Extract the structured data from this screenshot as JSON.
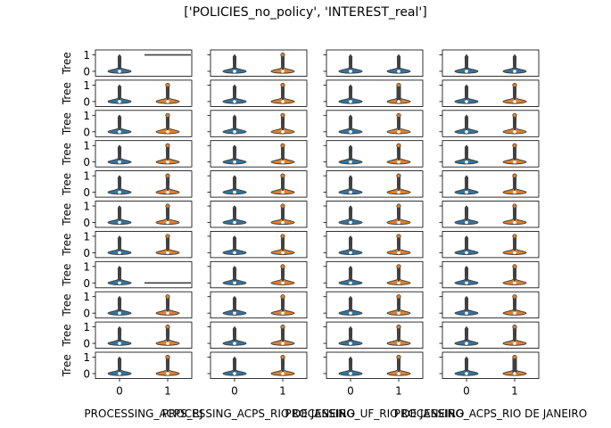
{
  "title": "['POLICIES_no_policy', 'INTEREST_real']",
  "colors": {
    "class0": "#3274a1",
    "class1": "#e1812c",
    "frame": "#000000",
    "violin_line": "#404040"
  },
  "chart_data": {
    "type": "violin",
    "title": "['POLICIES_no_policy', 'INTEREST_real']",
    "grid": false,
    "legend": "none",
    "rows": 11,
    "columns": [
      "PROCESSING_ACPS_RJ",
      "PROCESSING_ACPS_RIO DE JANEIRO",
      "PROCESSING_UF_RIO DE JANEIRO",
      "PROCESSING_ACPS_RIO DE JANEIRO"
    ],
    "column_labels": [
      "PROCESSING_ACPS_RJ",
      "PROCESSING_ACPS_RIO DE JANEIRO",
      "PROCESSING_UF_RIO DE JANEIRO",
      "PROCESSING_ACPS_RIO DE JANEIRO"
    ],
    "x_categories": [
      "0",
      "1"
    ],
    "x_tick_labels": [
      "0",
      "1"
    ],
    "y_label": "Tree",
    "y_ticks": [
      0,
      1
    ],
    "y_tick_labels": [
      "0",
      "1"
    ],
    "ylim": [
      -0.3,
      1.3
    ],
    "note_values": "each panel shows the distribution of Tree (values 0/1) for category 0 and 1",
    "panels": [
      [
        {
          "c0": "full",
          "c1": "line1"
        },
        {
          "c0": "full",
          "c1": "full"
        },
        {
          "c0": "full",
          "c1": "thin"
        },
        {
          "c0": "full",
          "c1": "thin"
        }
      ],
      [
        {
          "c0": "full",
          "c1": "full"
        },
        {
          "c0": "full",
          "c1": "full"
        },
        {
          "c0": "full",
          "c1": "dense"
        },
        {
          "c0": "full",
          "c1": "full"
        }
      ],
      [
        {
          "c0": "full",
          "c1": "full"
        },
        {
          "c0": "full",
          "c1": "full"
        },
        {
          "c0": "full",
          "c1": "full"
        },
        {
          "c0": "full",
          "c1": "full"
        }
      ],
      [
        {
          "c0": "full",
          "c1": "full"
        },
        {
          "c0": "full",
          "c1": "full"
        },
        {
          "c0": "full",
          "c1": "full"
        },
        {
          "c0": "full",
          "c1": "full"
        }
      ],
      [
        {
          "c0": "full",
          "c1": "full"
        },
        {
          "c0": "full",
          "c1": "full"
        },
        {
          "c0": "full",
          "c1": "full"
        },
        {
          "c0": "full",
          "c1": "full"
        }
      ],
      [
        {
          "c0": "full",
          "c1": "full"
        },
        {
          "c0": "full",
          "c1": "full"
        },
        {
          "c0": "full",
          "c1": "full"
        },
        {
          "c0": "full",
          "c1": "full"
        }
      ],
      [
        {
          "c0": "full",
          "c1": "full"
        },
        {
          "c0": "full",
          "c1": "full"
        },
        {
          "c0": "full",
          "c1": "full"
        },
        {
          "c0": "full",
          "c1": "full"
        }
      ],
      [
        {
          "c0": "full",
          "c1": "line0"
        },
        {
          "c0": "full",
          "c1": "full"
        },
        {
          "c0": "full",
          "c1": "full"
        },
        {
          "c0": "full",
          "c1": "full"
        }
      ],
      [
        {
          "c0": "full",
          "c1": "full"
        },
        {
          "c0": "full",
          "c1": "full"
        },
        {
          "c0": "full",
          "c1": "full"
        },
        {
          "c0": "full",
          "c1": "full"
        }
      ],
      [
        {
          "c0": "full",
          "c1": "full"
        },
        {
          "c0": "full",
          "c1": "full"
        },
        {
          "c0": "full",
          "c1": "full"
        },
        {
          "c0": "full",
          "c1": "full"
        }
      ],
      [
        {
          "c0": "full",
          "c1": "full"
        },
        {
          "c0": "full",
          "c1": "full"
        },
        {
          "c0": "full",
          "c1": "full"
        },
        {
          "c0": "full",
          "c1": "dense"
        }
      ]
    ]
  }
}
